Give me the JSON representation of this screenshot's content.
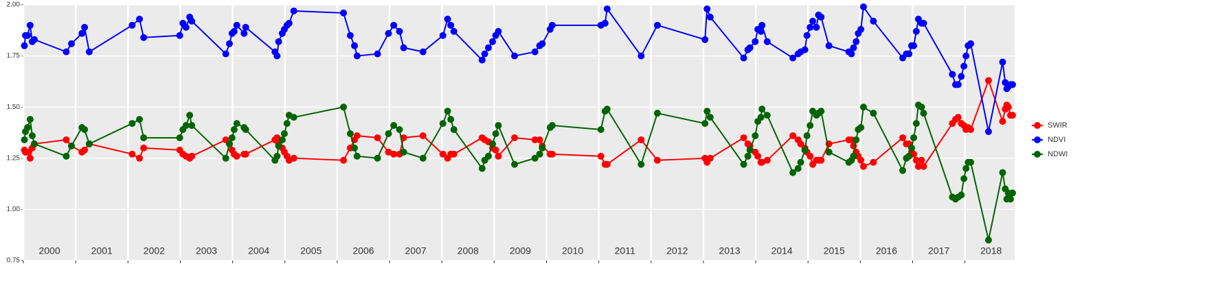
{
  "chart_data": {
    "type": "line",
    "x": [
      2000.02,
      2000.04,
      2000.08,
      2000.13,
      2000.17,
      2000.21,
      2000.82,
      2000.92,
      2001.12,
      2001.17,
      2001.26,
      2002.08,
      2002.22,
      2002.3,
      2002.99,
      2003.05,
      2003.11,
      2003.18,
      2003.22,
      2003.87,
      2003.94,
      2003.99,
      2004.03,
      2004.08,
      2004.22,
      2004.25,
      2004.81,
      2004.85,
      2004.88,
      2004.95,
      2004.99,
      2005.04,
      2005.08,
      2005.17,
      2006.12,
      2006.25,
      2006.33,
      2006.38,
      2006.77,
      2006.98,
      2007.08,
      2007.19,
      2007.27,
      2007.64,
      2008.02,
      2008.11,
      2008.17,
      2008.23,
      2008.77,
      2008.82,
      2008.89,
      2008.97,
      2009.03,
      2009.08,
      2009.39,
      2009.78,
      2009.87,
      2009.92,
      2010.07,
      2010.11,
      2011.04,
      2011.12,
      2011.16,
      2011.81,
      2012.12,
      2013.03,
      2013.07,
      2013.13,
      2013.77,
      2013.85,
      2013.89,
      2013.99,
      2014.04,
      2014.1,
      2014.12,
      2014.22,
      2014.71,
      2014.81,
      2014.86,
      2014.94,
      2014.98,
      2015.04,
      2015.09,
      2015.16,
      2015.2,
      2015.25,
      2015.4,
      2015.78,
      2015.83,
      2015.87,
      2015.92,
      2015.96,
      2016.01,
      2016.06,
      2016.25,
      2016.81,
      2016.88,
      2016.93,
      2016.98,
      2017.02,
      2017.07,
      2017.11,
      2017.17,
      2017.21,
      2017.76,
      2017.82,
      2017.87,
      2017.93,
      2017.98,
      2018.02,
      2018.06,
      2018.11,
      2018.45,
      2018.72,
      2018.77,
      2018.8,
      2018.83,
      2018.87,
      2018.91
    ],
    "series": [
      {
        "name": "SWIR",
        "color": "#ff0000",
        "values": [
          1.29,
          1.28,
          1.28,
          1.25,
          1.3,
          1.32,
          1.34,
          1.31,
          1.28,
          1.29,
          1.32,
          1.27,
          1.25,
          1.3,
          1.29,
          1.27,
          1.26,
          1.25,
          1.26,
          1.34,
          1.32,
          1.29,
          1.27,
          1.26,
          1.27,
          1.27,
          1.34,
          1.35,
          1.32,
          1.3,
          1.28,
          1.26,
          1.24,
          1.25,
          1.24,
          1.3,
          1.34,
          1.36,
          1.35,
          1.28,
          1.27,
          1.27,
          1.35,
          1.36,
          1.27,
          1.25,
          1.27,
          1.27,
          1.35,
          1.34,
          1.33,
          1.3,
          1.29,
          1.26,
          1.35,
          1.34,
          1.34,
          1.31,
          1.27,
          1.27,
          1.26,
          1.22,
          1.22,
          1.34,
          1.24,
          1.25,
          1.23,
          1.25,
          1.35,
          1.32,
          1.31,
          1.28,
          1.26,
          1.23,
          1.23,
          1.24,
          1.36,
          1.34,
          1.32,
          1.3,
          1.28,
          1.26,
          1.22,
          1.24,
          1.24,
          1.24,
          1.32,
          1.34,
          1.34,
          1.31,
          1.28,
          1.26,
          1.24,
          1.21,
          1.23,
          1.35,
          1.32,
          1.32,
          1.28,
          1.27,
          1.24,
          1.21,
          1.24,
          1.21,
          1.42,
          1.44,
          1.45,
          1.42,
          1.41,
          1.39,
          1.4,
          1.39,
          1.63,
          1.43,
          1.49,
          1.51,
          1.5,
          1.46,
          1.46
        ]
      },
      {
        "name": "NDVI",
        "color": "#0000ff",
        "values": [
          1.8,
          1.85,
          1.85,
          1.9,
          1.82,
          1.83,
          1.77,
          1.81,
          1.86,
          1.89,
          1.77,
          1.9,
          1.93,
          1.84,
          1.85,
          1.91,
          1.89,
          1.94,
          1.92,
          1.76,
          1.81,
          1.86,
          1.87,
          1.9,
          1.86,
          1.89,
          1.77,
          1.75,
          1.82,
          1.86,
          1.88,
          1.9,
          1.91,
          1.97,
          1.96,
          1.85,
          1.8,
          1.75,
          1.76,
          1.86,
          1.9,
          1.87,
          1.79,
          1.77,
          1.85,
          1.93,
          1.9,
          1.87,
          1.73,
          1.76,
          1.79,
          1.82,
          1.85,
          1.87,
          1.75,
          1.77,
          1.8,
          1.81,
          1.88,
          1.9,
          1.9,
          1.91,
          1.98,
          1.75,
          1.9,
          1.83,
          1.98,
          1.94,
          1.74,
          1.78,
          1.79,
          1.82,
          1.88,
          1.87,
          1.9,
          1.82,
          1.74,
          1.76,
          1.77,
          1.78,
          1.85,
          1.89,
          1.92,
          1.89,
          1.95,
          1.94,
          1.8,
          1.77,
          1.76,
          1.79,
          1.82,
          1.86,
          1.88,
          1.99,
          1.92,
          1.74,
          1.76,
          1.76,
          1.8,
          1.8,
          1.87,
          1.93,
          1.91,
          1.91,
          1.66,
          1.61,
          1.61,
          1.65,
          1.7,
          1.75,
          1.8,
          1.81,
          1.38,
          1.72,
          1.62,
          1.59,
          1.6,
          1.61,
          1.61
        ]
      },
      {
        "name": "NDWI",
        "color": "#006400",
        "values": [
          1.34,
          1.38,
          1.4,
          1.44,
          1.36,
          1.32,
          1.26,
          1.31,
          1.4,
          1.39,
          1.32,
          1.42,
          1.44,
          1.35,
          1.35,
          1.39,
          1.41,
          1.46,
          1.41,
          1.25,
          1.32,
          1.35,
          1.39,
          1.42,
          1.4,
          1.39,
          1.24,
          1.26,
          1.31,
          1.34,
          1.37,
          1.42,
          1.46,
          1.45,
          1.5,
          1.37,
          1.3,
          1.26,
          1.25,
          1.37,
          1.41,
          1.39,
          1.28,
          1.25,
          1.42,
          1.48,
          1.44,
          1.39,
          1.2,
          1.24,
          1.26,
          1.32,
          1.37,
          1.41,
          1.22,
          1.25,
          1.27,
          1.3,
          1.4,
          1.41,
          1.39,
          1.48,
          1.49,
          1.22,
          1.47,
          1.42,
          1.48,
          1.45,
          1.22,
          1.26,
          1.29,
          1.36,
          1.43,
          1.45,
          1.49,
          1.46,
          1.18,
          1.2,
          1.23,
          1.29,
          1.36,
          1.41,
          1.48,
          1.46,
          1.47,
          1.48,
          1.28,
          1.23,
          1.24,
          1.26,
          1.34,
          1.39,
          1.4,
          1.5,
          1.47,
          1.19,
          1.25,
          1.26,
          1.3,
          1.35,
          1.42,
          1.51,
          1.5,
          1.47,
          1.06,
          1.05,
          1.06,
          1.07,
          1.15,
          1.2,
          1.23,
          1.23,
          0.85,
          1.18,
          1.1,
          1.05,
          1.08,
          1.05,
          1.08
        ]
      }
    ],
    "xlim": [
      2000,
      2018.95
    ],
    "xticks": [
      2000,
      2001,
      2002,
      2003,
      2004,
      2005,
      2006,
      2007,
      2008,
      2009,
      2010,
      2011,
      2012,
      2013,
      2014,
      2015,
      2016,
      2017,
      2018
    ],
    "year_labels": [
      "2000",
      "2001",
      "2002",
      "2003",
      "2004",
      "2005",
      "2006",
      "2007",
      "2008",
      "2009",
      "2010",
      "2011",
      "2012",
      "2013",
      "2014",
      "2015",
      "2016",
      "2017",
      "2018"
    ],
    "ylim": [
      0.75,
      2.0
    ],
    "yticks": [
      {
        "value": 0.75,
        "label": "0.75"
      },
      {
        "value": 1.0,
        "label": "1.00"
      },
      {
        "value": 1.25,
        "label": "1.25"
      },
      {
        "value": 1.5,
        "label": "1.50"
      },
      {
        "value": 1.75,
        "label": "1.75"
      },
      {
        "value": 2.0,
        "label": "2.00"
      }
    ],
    "grid": true,
    "legend": "right"
  }
}
